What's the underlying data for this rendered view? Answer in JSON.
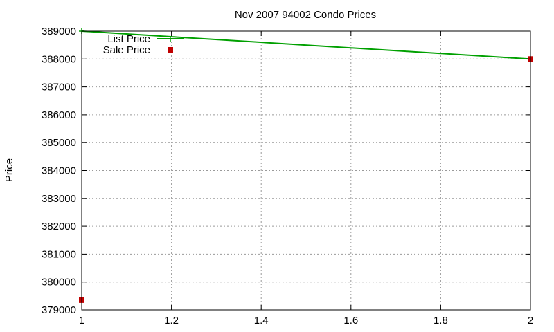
{
  "chart_data": {
    "type": "line",
    "title": "Nov 2007 94002 Condo Prices",
    "xlabel": "",
    "ylabel": "Price",
    "xlim": [
      1,
      2
    ],
    "ylim": [
      379000,
      389000
    ],
    "x_ticks": [
      1,
      1.2,
      1.4,
      1.6,
      1.8,
      2
    ],
    "x_tick_labels": [
      "1",
      "1.2",
      "1.4",
      "1.6",
      "1.8",
      "2"
    ],
    "y_ticks": [
      379000,
      380000,
      381000,
      382000,
      383000,
      384000,
      385000,
      386000,
      387000,
      388000,
      389000
    ],
    "y_tick_labels": [
      "379000",
      "380000",
      "381000",
      "382000",
      "383000",
      "384000",
      "385000",
      "386000",
      "387000",
      "388000",
      "389000"
    ],
    "grid": true,
    "legend_position": "top-left",
    "series": [
      {
        "name": "List Price",
        "style": "line",
        "color": "#00a000",
        "points": [
          [
            1,
            389000
          ],
          [
            2,
            388000
          ]
        ]
      },
      {
        "name": "Sale Price",
        "style": "points",
        "color": "#c00000",
        "points": [
          [
            1,
            379350
          ],
          [
            2,
            388000
          ]
        ]
      }
    ]
  }
}
